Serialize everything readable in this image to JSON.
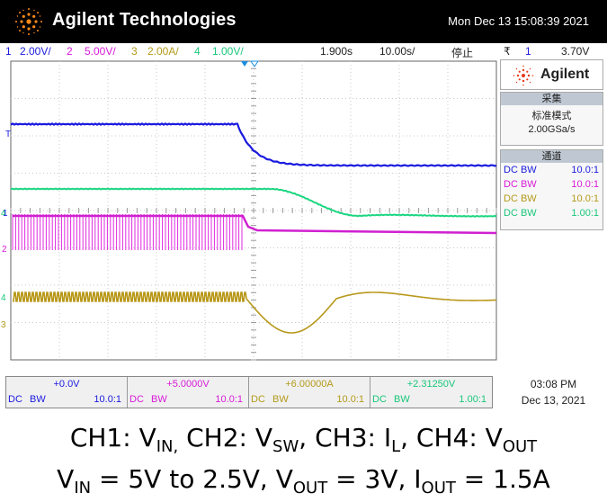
{
  "header": {
    "brand": "Agilent Technologies",
    "datetime": "Mon Dec 13 15:08:39 2021"
  },
  "status": {
    "ch1_num": "1",
    "ch1_scale": "2.00V/",
    "ch2_num": "2",
    "ch2_scale": "5.00V/",
    "ch3_num": "3",
    "ch3_scale": "2.00A/",
    "ch4_num": "4",
    "ch4_scale": "1.00V/",
    "time_pos": "1.900s",
    "time_scale": "10.00s/",
    "run_state": "停止",
    "trig_symbol": "₹",
    "trig_ch": "1",
    "trig_level": "3.70V"
  },
  "panel": {
    "logo": "Agilent",
    "acq_header": "采集",
    "acq_mode": "标准模式",
    "acq_rate": "2.00GSa/s",
    "channels_header": "通道",
    "channels": [
      {
        "coupling": "DC",
        "bw": "BW",
        "probe": "10.0:1",
        "color": "#1a1adf"
      },
      {
        "coupling": "DC",
        "bw": "BW",
        "probe": "10.0:1",
        "color": "#d81ad8"
      },
      {
        "coupling": "DC",
        "bw": "BW",
        "probe": "10.0:1",
        "color": "#b39a1a"
      },
      {
        "coupling": "DC",
        "bw": "BW",
        "probe": "1.00:1",
        "color": "#1ac77a"
      }
    ]
  },
  "bottom": {
    "channels": [
      {
        "offset": "+0.0V",
        "coupling": "DC",
        "bw": "BW",
        "probe": "10.0:1",
        "color": "#1a1adf"
      },
      {
        "offset": "+5.0000V",
        "coupling": "DC",
        "bw": "BW",
        "probe": "10.0:1",
        "color": "#d81ad8"
      },
      {
        "offset": "+6.00000A",
        "coupling": "DC",
        "bw": "BW",
        "probe": "10.0:1",
        "color": "#b39a1a"
      },
      {
        "offset": "+2.31250V",
        "coupling": "DC",
        "bw": "BW",
        "probe": "1.00:1",
        "color": "#1ac77a"
      }
    ],
    "clock_time": "03:08 PM",
    "clock_date": "Dec 13, 2021"
  },
  "markers": {
    "trigger": "T",
    "ch1": "1",
    "ch2": "2",
    "ch3": "3",
    "ch4": "4"
  },
  "caption": {
    "line1": {
      "ch1_prefix": "CH1: V",
      "ch1_sub": "IN,",
      "ch2_prefix": " CH2: V",
      "ch2_sub": "SW",
      "ch3_prefix": ", CH3: I",
      "ch3_sub": "L",
      "ch4_prefix": ", CH4: V",
      "ch4_sub": "OUT"
    },
    "line2": {
      "vin_prefix": "V",
      "vin_sub": "IN",
      "vin_text": " = 5V to 2.5V, V",
      "vout_sub": "OUT",
      "vout_text": " = 3V, I",
      "iout_sub": "OUT",
      "iout_text": " = 1.5A"
    }
  }
}
